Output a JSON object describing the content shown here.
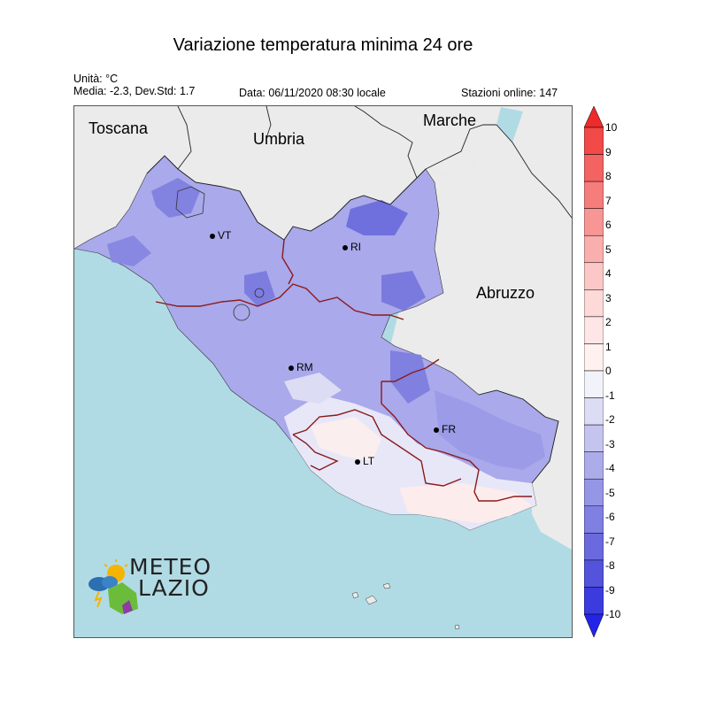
{
  "title": "Variazione temperatura minima 24 ore",
  "units": "Unità: °C",
  "stats": "Media: -2.3, Dev.Std: 1.7",
  "date": "Data: 06/11/2020 08:30 locale",
  "stations": "Stazioni online: 147",
  "regions": {
    "toscana": "Toscana",
    "umbria": "Umbria",
    "marche": "Marche",
    "abruzzo": "Abruzzo"
  },
  "cities": {
    "vt": "VT",
    "ri": "RI",
    "rm": "RM",
    "fr": "FR",
    "lt": "LT"
  },
  "colorbar": {
    "ticks": [
      "10",
      "9",
      "8",
      "7",
      "6",
      "5",
      "4",
      "3",
      "2",
      "1",
      "0",
      "-1",
      "-2",
      "-3",
      "-4",
      "-5",
      "-6",
      "-7",
      "-8",
      "-9",
      "-10"
    ],
    "colors": [
      "#ee2a2a",
      "#f14a48",
      "#f36362",
      "#f57d7c",
      "#f79695",
      "#f9afae",
      "#fbc8c7",
      "#fdd9d8",
      "#fde6e5",
      "#fff1f0",
      "#f2f2fa",
      "#dcdcf4",
      "#c4c4ef",
      "#acacea",
      "#9696e6",
      "#8080e2",
      "#6a6ade",
      "#5353dc",
      "#3c3cde",
      "#2424e8"
    ]
  },
  "logo": {
    "line1": "METEO",
    "line2": "LAZIO"
  }
}
